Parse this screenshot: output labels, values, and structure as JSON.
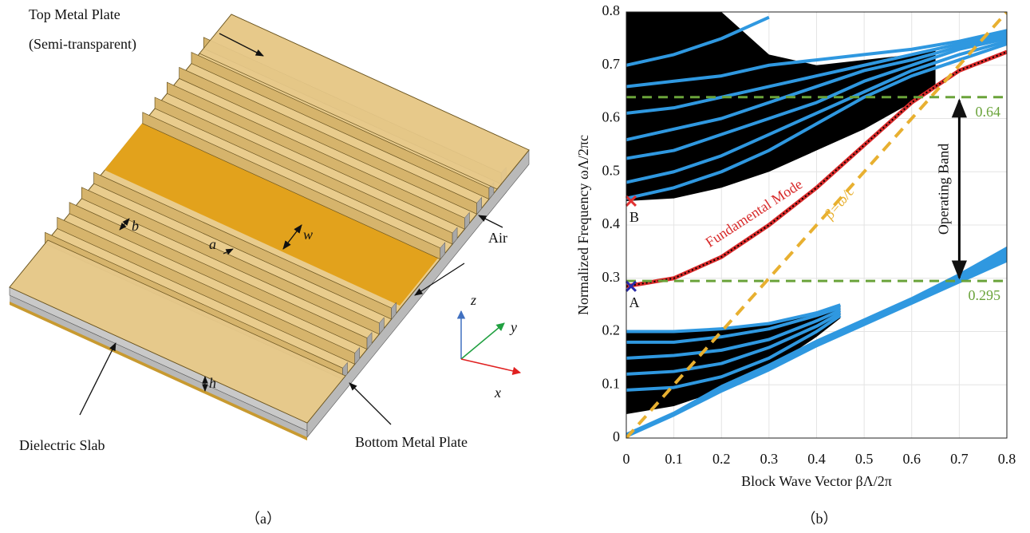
{
  "panel_a": {
    "label": "（a）",
    "labels": {
      "top_plate": "Top Metal Plate",
      "top_plate_note": "(Semi-transparent)",
      "air": "Air",
      "dielectric": "Dielectric Slab",
      "bottom_plate": "Bottom Metal Plate",
      "b": "b",
      "a": "a",
      "w": "w",
      "h": "h",
      "x": "x",
      "y": "y",
      "z": "z"
    }
  },
  "chart_data": {
    "type": "line",
    "label": "（b）",
    "x_label": "Block Wave Vector βΛ/2π",
    "y_label": "Normalized Frequency ωΛ/2πc",
    "xlim": [
      0,
      0.8
    ],
    "ylim": [
      0,
      0.8
    ],
    "xticks": [
      0,
      0.1,
      0.2,
      0.3,
      0.4,
      0.5,
      0.6,
      0.7,
      0.8
    ],
    "yticks": [
      0,
      0.1,
      0.2,
      0.3,
      0.4,
      0.5,
      0.6,
      0.7,
      0.8
    ],
    "grid": true,
    "regions": [
      {
        "color": "#000000",
        "x": [
          0,
          0.1,
          0.2,
          0.3,
          0.4,
          0.45
        ],
        "lower": [
          0.045,
          0.06,
          0.09,
          0.13,
          0.19,
          0.225
        ],
        "upper": [
          0.2,
          0.2,
          0.205,
          0.215,
          0.235,
          0.25
        ]
      },
      {
        "color": "#000000",
        "x": [
          0,
          0.1,
          0.2,
          0.3,
          0.4,
          0.5,
          0.6,
          0.65
        ],
        "lower": [
          0.445,
          0.45,
          0.47,
          0.5,
          0.54,
          0.58,
          0.63,
          0.66
        ],
        "upper": [
          0.8,
          0.8,
          0.8,
          0.72,
          0.7,
          0.71,
          0.72,
          0.73
        ]
      },
      {
        "color": "#2f98e0",
        "x": [
          0,
          0.1,
          0.2,
          0.3,
          0.4,
          0.5,
          0.6,
          0.7,
          0.8
        ],
        "lower": [
          0,
          0.04,
          0.085,
          0.125,
          0.17,
          0.21,
          0.25,
          0.29,
          0.33
        ],
        "upper": [
          0.01,
          0.05,
          0.1,
          0.14,
          0.185,
          0.225,
          0.265,
          0.31,
          0.36
        ]
      }
    ],
    "series": [
      {
        "color": "#2f98e0",
        "x": [
          0,
          0.1,
          0.2,
          0.3,
          0.4,
          0.45
        ],
        "values": [
          0.2,
          0.2,
          0.205,
          0.215,
          0.235,
          0.25
        ]
      },
      {
        "color": "#2f98e0",
        "x": [
          0,
          0.1,
          0.2,
          0.3,
          0.4,
          0.45
        ],
        "values": [
          0.18,
          0.18,
          0.19,
          0.205,
          0.23,
          0.245
        ]
      },
      {
        "color": "#2f98e0",
        "x": [
          0,
          0.1,
          0.2,
          0.3,
          0.4,
          0.45
        ],
        "values": [
          0.15,
          0.155,
          0.165,
          0.185,
          0.22,
          0.24
        ]
      },
      {
        "color": "#2f98e0",
        "x": [
          0,
          0.1,
          0.2,
          0.3,
          0.4,
          0.45
        ],
        "values": [
          0.12,
          0.125,
          0.14,
          0.17,
          0.21,
          0.235
        ]
      },
      {
        "color": "#2f98e0",
        "x": [
          0,
          0.1,
          0.2,
          0.3,
          0.4,
          0.45
        ],
        "values": [
          0.09,
          0.095,
          0.115,
          0.15,
          0.2,
          0.23
        ]
      },
      {
        "color": "#2f98e0",
        "x": [
          0,
          0.1,
          0.2,
          0.3,
          0.4,
          0.5,
          0.6,
          0.7,
          0.8
        ],
        "values": [
          0.45,
          0.47,
          0.5,
          0.54,
          0.59,
          0.64,
          0.68,
          0.71,
          0.74
        ]
      },
      {
        "color": "#2f98e0",
        "x": [
          0,
          0.1,
          0.2,
          0.3,
          0.4,
          0.5,
          0.6,
          0.7,
          0.8
        ],
        "values": [
          0.48,
          0.5,
          0.53,
          0.57,
          0.61,
          0.65,
          0.69,
          0.72,
          0.745
        ]
      },
      {
        "color": "#2f98e0",
        "x": [
          0,
          0.1,
          0.2,
          0.3,
          0.4,
          0.5,
          0.6,
          0.7,
          0.8
        ],
        "values": [
          0.525,
          0.54,
          0.57,
          0.6,
          0.63,
          0.67,
          0.7,
          0.73,
          0.75
        ]
      },
      {
        "color": "#2f98e0",
        "x": [
          0,
          0.1,
          0.2,
          0.3,
          0.4,
          0.5,
          0.6,
          0.7,
          0.8
        ],
        "values": [
          0.56,
          0.58,
          0.6,
          0.63,
          0.66,
          0.69,
          0.71,
          0.735,
          0.755
        ]
      },
      {
        "color": "#2f98e0",
        "x": [
          0,
          0.1,
          0.2,
          0.3,
          0.4,
          0.5,
          0.6,
          0.7,
          0.8
        ],
        "values": [
          0.61,
          0.62,
          0.64,
          0.66,
          0.68,
          0.7,
          0.72,
          0.74,
          0.76
        ]
      },
      {
        "color": "#2f98e0",
        "x": [
          0,
          0.1,
          0.2,
          0.3,
          0.4,
          0.5,
          0.6,
          0.7,
          0.8
        ],
        "values": [
          0.66,
          0.67,
          0.68,
          0.7,
          0.71,
          0.72,
          0.73,
          0.745,
          0.765
        ]
      },
      {
        "color": "#2f98e0",
        "x": [
          0,
          0.1,
          0.2,
          0.3
        ],
        "values": [
          0.7,
          0.72,
          0.75,
          0.79
        ]
      },
      {
        "name": "Fundamental Mode",
        "color": "#d82a2a",
        "x": [
          0,
          0.1,
          0.2,
          0.3,
          0.4,
          0.5,
          0.6,
          0.7,
          0.8
        ],
        "values": [
          0.285,
          0.3,
          0.34,
          0.4,
          0.47,
          0.55,
          0.63,
          0.69,
          0.725
        ]
      },
      {
        "name": "β=ω/c",
        "color": "#e8b030",
        "dashed": true,
        "x": [
          0,
          0.8
        ],
        "values": [
          0,
          0.8
        ]
      }
    ],
    "hlines": {
      "color": "#6aa33a",
      "values": [
        0.64,
        0.295
      ]
    },
    "markers": [
      {
        "label": "A",
        "x": 0.01,
        "y": 0.285,
        "color": "#2a2aa8"
      },
      {
        "label": "B",
        "x": 0.01,
        "y": 0.445,
        "color": "#e03030"
      }
    ],
    "band": {
      "label": "Operating Band",
      "x": 0.7
    }
  }
}
